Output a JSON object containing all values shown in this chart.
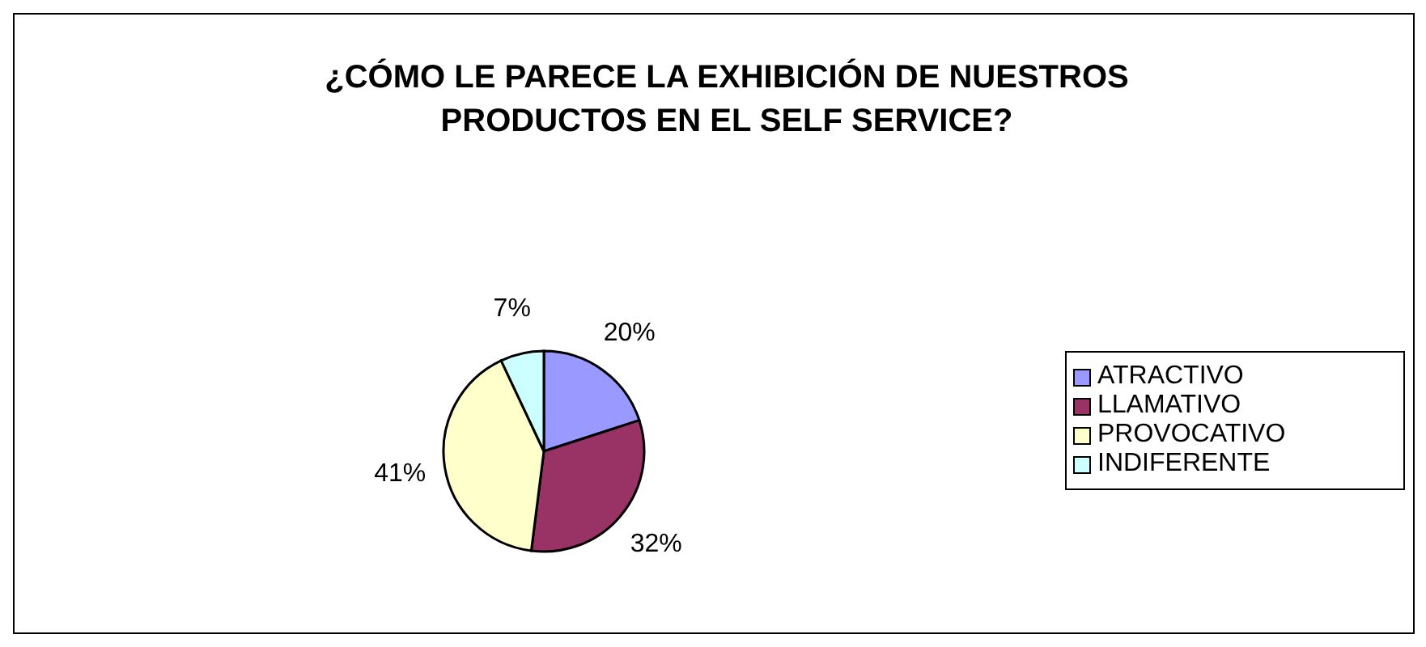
{
  "chart_data": {
    "type": "pie",
    "title": "¿CÓMO LE PARECE LA EXHIBICIÓN DE NUESTROS PRODUCTOS EN EL SELF SERVICE?",
    "categories": [
      "ATRACTIVO",
      "LLAMATIVO",
      "PROVOCATIVO",
      "INDIFERENTE"
    ],
    "values": [
      20,
      32,
      41,
      7
    ],
    "colors": [
      "#9999ff",
      "#993366",
      "#ffffcc",
      "#ccffff"
    ],
    "value_labels": [
      "20%",
      "32%",
      "41%",
      "7%"
    ],
    "legend": "right"
  }
}
